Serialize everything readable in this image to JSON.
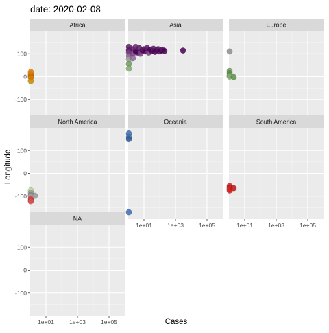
{
  "chart_data": {
    "type": "scatter",
    "title": "date: 2020-02-08",
    "xlabel": "Cases",
    "ylabel": "Longitude",
    "x_scale": "log10",
    "xlim": [
      1,
      1000000
    ],
    "ylim": [
      -200,
      200
    ],
    "x_ticks": [
      10,
      1000,
      100000
    ],
    "x_tick_labels": [
      "1e+01",
      "1e+03",
      "1e+05"
    ],
    "y_ticks": [
      -100,
      0,
      100
    ],
    "y_tick_labels": [
      "-100",
      "0",
      "100"
    ],
    "grid": true,
    "panel_background": "#EBEBEB",
    "strip_background": "#D9D9D9",
    "legend": "none",
    "facets": [
      {
        "name": "Africa",
        "points": [
          {
            "x": 1,
            "y": 5,
            "color": "#E07B00"
          },
          {
            "x": 1,
            "y": 10,
            "color": "#E07B00"
          },
          {
            "x": 1,
            "y": 0,
            "color": "#D97200"
          },
          {
            "x": 1,
            "y": -5,
            "color": "#E07B00"
          },
          {
            "x": 1,
            "y": -20,
            "color": "#C88A00"
          },
          {
            "x": 1,
            "y": 20,
            "color": "#E07B00"
          }
        ]
      },
      {
        "name": "Asia",
        "points": [
          {
            "x": 1,
            "y": 115,
            "color": "#4B0055"
          },
          {
            "x": 1,
            "y": 105,
            "color": "#7A3C85"
          },
          {
            "x": 1,
            "y": 90,
            "color": "#8C6A95"
          },
          {
            "x": 1,
            "y": 130,
            "color": "#5B1A66"
          },
          {
            "x": 1,
            "y": 75,
            "color": "#9A9A9A"
          },
          {
            "x": 1,
            "y": 55,
            "color": "#6E9F5C"
          },
          {
            "x": 1,
            "y": 35,
            "color": "#7FAE6A"
          },
          {
            "x": 2,
            "y": 120,
            "color": "#5B1A66"
          },
          {
            "x": 2,
            "y": 100,
            "color": "#7A3C85"
          },
          {
            "x": 2,
            "y": 80,
            "color": "#8C6A95"
          },
          {
            "x": 3,
            "y": 110,
            "color": "#4B0055"
          },
          {
            "x": 3,
            "y": 130,
            "color": "#6A2A75"
          },
          {
            "x": 4,
            "y": 105,
            "color": "#4B0055"
          },
          {
            "x": 5,
            "y": 125,
            "color": "#5B1A66"
          },
          {
            "x": 6,
            "y": 100,
            "color": "#7A3C85"
          },
          {
            "x": 8,
            "y": 115,
            "color": "#4B0055"
          },
          {
            "x": 10,
            "y": 120,
            "color": "#5B1A66"
          },
          {
            "x": 12,
            "y": 110,
            "color": "#4B0055"
          },
          {
            "x": 16,
            "y": 125,
            "color": "#5B1A66"
          },
          {
            "x": 20,
            "y": 105,
            "color": "#7A3C85"
          },
          {
            "x": 25,
            "y": 118,
            "color": "#4B0055"
          },
          {
            "x": 32,
            "y": 112,
            "color": "#4B0055"
          },
          {
            "x": 40,
            "y": 122,
            "color": "#5B1A66"
          },
          {
            "x": 50,
            "y": 108,
            "color": "#4B0055"
          },
          {
            "x": 65,
            "y": 116,
            "color": "#4B0055"
          },
          {
            "x": 80,
            "y": 120,
            "color": "#5B1A66"
          },
          {
            "x": 100,
            "y": 110,
            "color": "#4B0055"
          },
          {
            "x": 130,
            "y": 115,
            "color": "#4B0055"
          },
          {
            "x": 160,
            "y": 118,
            "color": "#5B1A66"
          },
          {
            "x": 200,
            "y": 112,
            "color": "#4B0055"
          },
          {
            "x": 3000,
            "y": 114,
            "color": "#4B0055"
          }
        ]
      },
      {
        "name": "Europe",
        "points": [
          {
            "x": 1,
            "y": 110,
            "color": "#8E8E8E"
          },
          {
            "x": 1,
            "y": 25,
            "color": "#6E9F5C"
          },
          {
            "x": 1,
            "y": 15,
            "color": "#5A9048"
          },
          {
            "x": 1,
            "y": 5,
            "color": "#6E9F5C"
          },
          {
            "x": 1,
            "y": 0,
            "color": "#7FAE6A"
          },
          {
            "x": 2,
            "y": -2,
            "color": "#5A9048"
          }
        ]
      },
      {
        "name": "North America",
        "points": [
          {
            "x": 1,
            "y": -75,
            "color": "#B8D98A"
          },
          {
            "x": 1,
            "y": -85,
            "color": "#9A9A9A"
          },
          {
            "x": 1,
            "y": -95,
            "color": "#8E8E8E"
          },
          {
            "x": 1,
            "y": -100,
            "color": "#A5A5A5"
          },
          {
            "x": 1,
            "y": -110,
            "color": "#D95050"
          },
          {
            "x": 1,
            "y": -118,
            "color": "#C83030"
          },
          {
            "x": 1,
            "y": -122,
            "color": "#E05050"
          },
          {
            "x": 2,
            "y": -98,
            "color": "#9A9A9A"
          }
        ]
      },
      {
        "name": "Oceania",
        "points": [
          {
            "x": 1,
            "y": 175,
            "color": "#3A6FB5"
          },
          {
            "x": 1,
            "y": 160,
            "color": "#4A6FA5"
          },
          {
            "x": 1,
            "y": 150,
            "color": "#2E5A9A"
          },
          {
            "x": 1,
            "y": -170,
            "color": "#3A6FB5"
          }
        ]
      },
      {
        "name": "South America",
        "points": [
          {
            "x": 1,
            "y": -55,
            "color": "#D62020"
          },
          {
            "x": 1,
            "y": -62,
            "color": "#C81010"
          },
          {
            "x": 1,
            "y": -68,
            "color": "#E03030"
          },
          {
            "x": 1,
            "y": -75,
            "color": "#D62020"
          },
          {
            "x": 2,
            "y": -65,
            "color": "#C81010"
          }
        ]
      },
      {
        "name": "NA",
        "points": []
      }
    ]
  }
}
